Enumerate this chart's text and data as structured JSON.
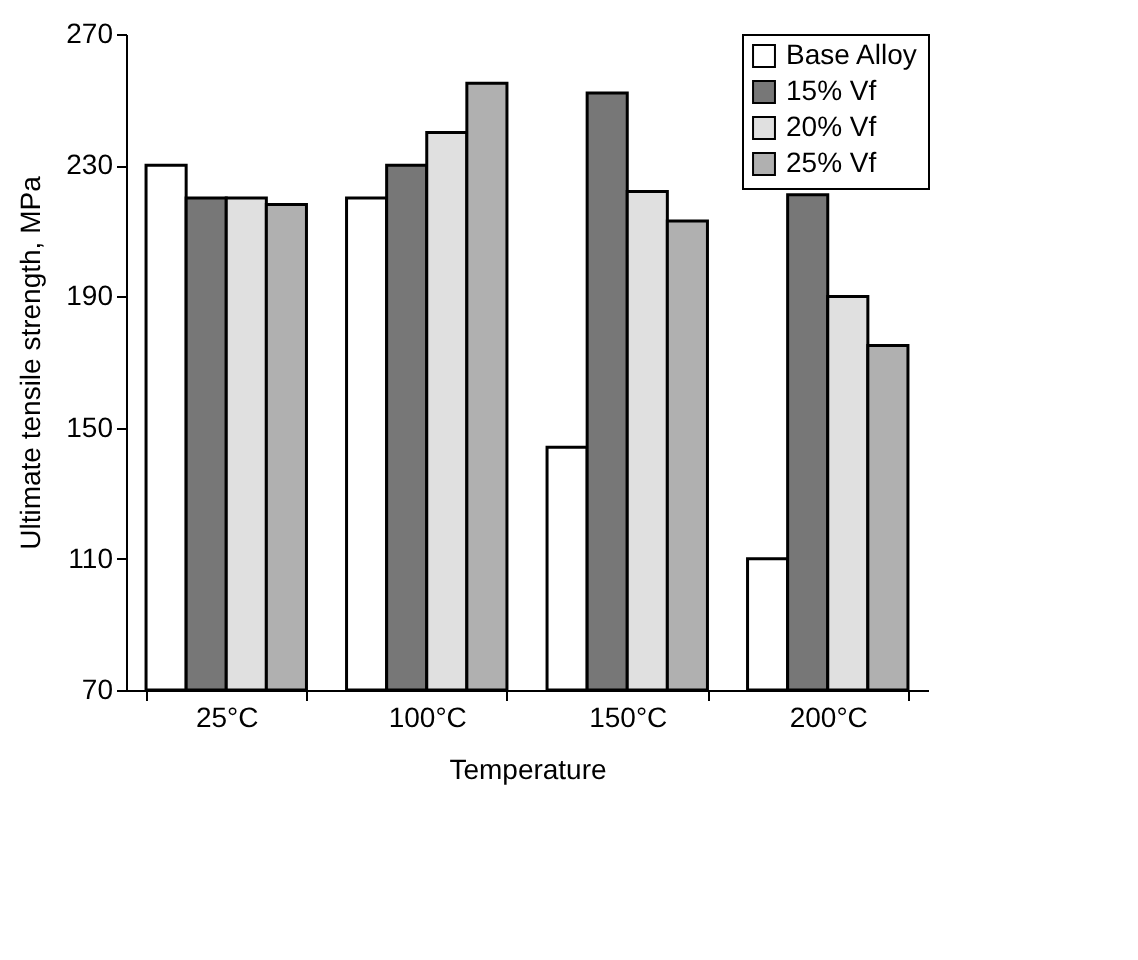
{
  "chart_data": {
    "type": "bar",
    "xlabel": "Temperature",
    "ylabel": "Ultimate tensile strength, MPa",
    "categories": [
      "25°C",
      "100°C",
      "150°C",
      "200°C"
    ],
    "series": [
      {
        "name": "Base Alloy",
        "color": "#ffffff",
        "values": [
          230,
          220,
          144,
          110
        ]
      },
      {
        "name": "15% Vf",
        "color": "#777777",
        "values": [
          220,
          230,
          252,
          221
        ]
      },
      {
        "name": "20% Vf",
        "color": "#e0e0e0",
        "values": [
          220,
          240,
          222,
          190
        ]
      },
      {
        "name": "25% Vf",
        "color": "#b0b0b0",
        "values": [
          218,
          255,
          213,
          175
        ]
      }
    ],
    "ylim": [
      70,
      270
    ],
    "yticks": [
      70,
      110,
      150,
      190,
      230,
      270
    ],
    "grid": false,
    "legend": "top right"
  }
}
